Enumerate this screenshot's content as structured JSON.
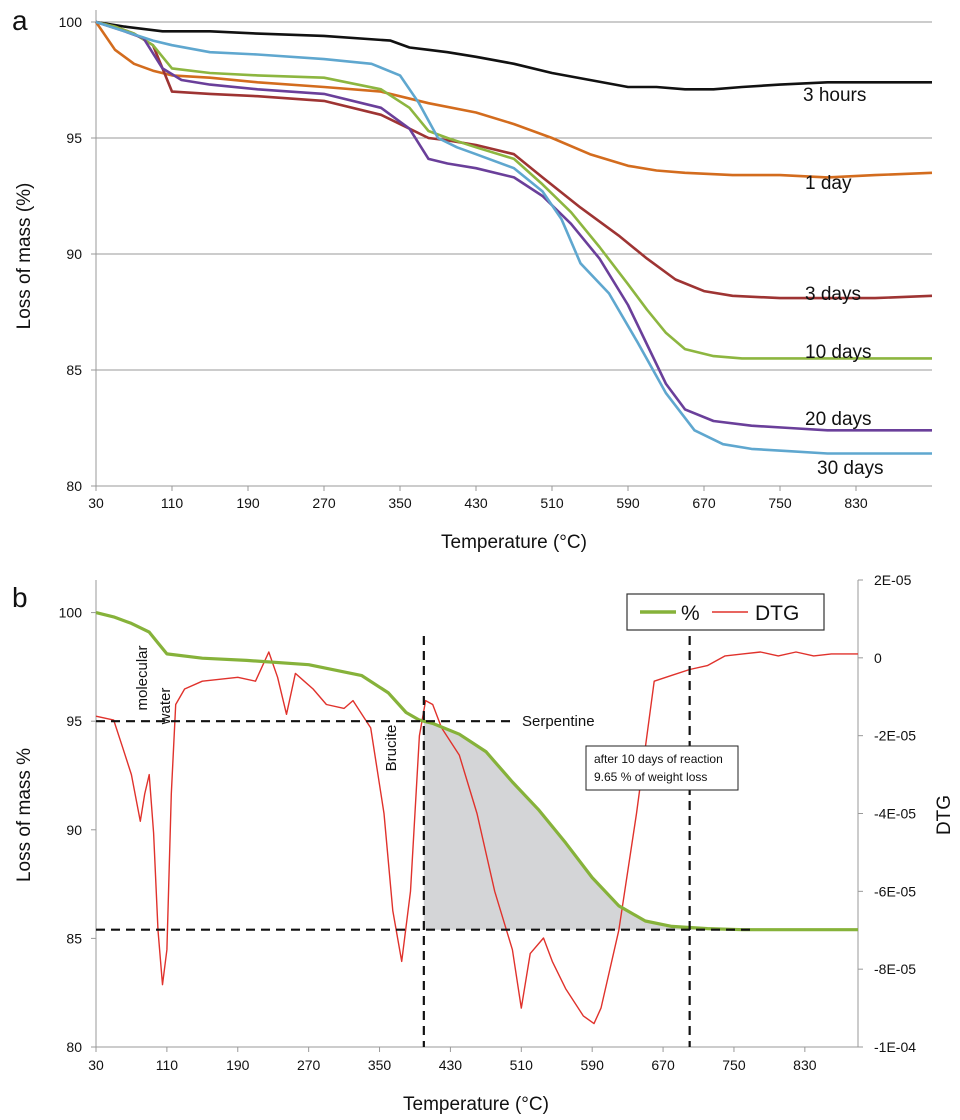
{
  "chart_data": [
    {
      "panel": "a",
      "type": "line",
      "xlabel": "Temperature (°C)",
      "ylabel": "Loss of mass (%)",
      "xlim": [
        30,
        910
      ],
      "ylim": [
        80,
        100
      ],
      "xticks": [
        30,
        110,
        190,
        270,
        350,
        430,
        510,
        590,
        670,
        750,
        830
      ],
      "yticks": [
        80,
        85,
        90,
        95,
        100
      ],
      "grid": "horizontal",
      "series": [
        {
          "name": "3 hours",
          "color": "#111111",
          "x": [
            30,
            60,
            100,
            150,
            200,
            270,
            340,
            360,
            380,
            400,
            430,
            470,
            510,
            550,
            590,
            620,
            650,
            680,
            710,
            750,
            800,
            850,
            910
          ],
          "y": [
            100,
            99.8,
            99.6,
            99.6,
            99.5,
            99.4,
            99.2,
            98.9,
            98.8,
            98.7,
            98.5,
            98.2,
            97.8,
            97.5,
            97.2,
            97.2,
            97.1,
            97.1,
            97.2,
            97.3,
            97.4,
            97.4,
            97.4
          ]
        },
        {
          "name": "1 day",
          "color": "#d36c1e",
          "x": [
            30,
            50,
            70,
            90,
            110,
            150,
            200,
            270,
            330,
            380,
            430,
            470,
            510,
            550,
            590,
            620,
            650,
            700,
            750,
            800,
            850,
            910
          ],
          "y": [
            100,
            98.8,
            98.2,
            97.9,
            97.7,
            97.6,
            97.4,
            97.2,
            97.0,
            96.5,
            96.1,
            95.6,
            95.0,
            94.3,
            93.8,
            93.6,
            93.5,
            93.4,
            93.4,
            93.3,
            93.4,
            93.5
          ]
        },
        {
          "name": "3 days",
          "color": "#9e3433",
          "x": [
            30,
            50,
            70,
            90,
            100,
            110,
            150,
            200,
            270,
            330,
            360,
            380,
            400,
            430,
            470,
            500,
            540,
            580,
            610,
            640,
            670,
            700,
            750,
            800,
            850,
            910
          ],
          "y": [
            100,
            99.8,
            99.5,
            99.0,
            98.0,
            97.0,
            96.9,
            96.8,
            96.6,
            96.0,
            95.4,
            95.0,
            94.9,
            94.7,
            94.3,
            93.3,
            92.0,
            90.8,
            89.8,
            88.9,
            88.4,
            88.2,
            88.1,
            88.1,
            88.1,
            88.2
          ]
        },
        {
          "name": "10 days",
          "color": "#8db640",
          "x": [
            30,
            50,
            70,
            90,
            110,
            150,
            200,
            270,
            330,
            360,
            380,
            400,
            430,
            470,
            500,
            530,
            560,
            590,
            610,
            630,
            650,
            680,
            710,
            750,
            800,
            850,
            910
          ],
          "y": [
            100,
            99.8,
            99.5,
            99.0,
            98.0,
            97.8,
            97.7,
            97.6,
            97.1,
            96.3,
            95.3,
            95.0,
            94.6,
            94.1,
            93.0,
            91.8,
            90.3,
            88.7,
            87.6,
            86.6,
            85.9,
            85.6,
            85.5,
            85.5,
            85.5,
            85.5,
            85.5
          ]
        },
        {
          "name": "20 days",
          "color": "#6a3f9a",
          "x": [
            30,
            60,
            80,
            100,
            120,
            150,
            200,
            270,
            330,
            360,
            380,
            400,
            430,
            470,
            500,
            530,
            560,
            590,
            610,
            630,
            650,
            680,
            720,
            760,
            800,
            850,
            910
          ],
          "y": [
            100,
            99.6,
            99.3,
            98.0,
            97.5,
            97.3,
            97.1,
            96.9,
            96.3,
            95.4,
            94.1,
            93.9,
            93.7,
            93.3,
            92.5,
            91.3,
            89.8,
            87.8,
            86.1,
            84.4,
            83.3,
            82.8,
            82.6,
            82.5,
            82.4,
            82.4,
            82.4
          ]
        },
        {
          "name": "30 days",
          "color": "#5fa7cf",
          "x": [
            30,
            60,
            90,
            110,
            150,
            200,
            270,
            320,
            350,
            370,
            390,
            410,
            430,
            470,
            500,
            520,
            540,
            570,
            600,
            630,
            660,
            690,
            720,
            760,
            800,
            850,
            910
          ],
          "y": [
            100,
            99.6,
            99.2,
            99.0,
            98.7,
            98.6,
            98.4,
            98.2,
            97.7,
            96.5,
            95.0,
            94.6,
            94.3,
            93.7,
            92.7,
            91.5,
            89.6,
            88.3,
            86.2,
            84.0,
            82.4,
            81.8,
            81.6,
            81.5,
            81.4,
            81.4,
            81.4
          ]
        }
      ]
    },
    {
      "panel": "b",
      "type": "line",
      "xlabel": "Temperature (°C)",
      "ylabel": "Loss of mass %",
      "y2label": "DTG",
      "xlim": [
        30,
        890
      ],
      "ylim": [
        80,
        101.5
      ],
      "y2lim": [
        -0.0001,
        2e-05
      ],
      "xticks": [
        30,
        110,
        190,
        270,
        350,
        430,
        510,
        590,
        670,
        750,
        830
      ],
      "yticks": [
        80,
        85,
        90,
        95,
        100
      ],
      "y2ticks": [
        "2E-05",
        "0",
        "-2E-05",
        "-4E-05",
        "-6E-05",
        "-8E-05",
        "-1E-04"
      ],
      "y2tick_values": [
        2e-05,
        0,
        -2e-05,
        -4e-05,
        -6e-05,
        -8e-05,
        -0.0001
      ],
      "grid": "off",
      "legend": {
        "position": "top-right",
        "entries": [
          "%",
          "DTG"
        ]
      },
      "series": [
        {
          "name": "%",
          "axis": "left",
          "color": "#86b23a",
          "x": [
            30,
            50,
            70,
            90,
            100,
            110,
            150,
            200,
            270,
            330,
            360,
            380,
            395,
            410,
            440,
            470,
            500,
            530,
            560,
            590,
            620,
            650,
            680,
            720,
            760,
            800,
            850,
            890
          ],
          "y": [
            100,
            99.8,
            99.5,
            99.1,
            98.6,
            98.1,
            97.9,
            97.8,
            97.6,
            97.1,
            96.3,
            95.4,
            95.05,
            94.9,
            94.4,
            93.6,
            92.2,
            90.9,
            89.4,
            87.8,
            86.5,
            85.8,
            85.55,
            85.45,
            85.4,
            85.4,
            85.4,
            85.4
          ]
        },
        {
          "name": "DTG",
          "axis": "right",
          "color": "#e0322c",
          "x": [
            30,
            50,
            60,
            70,
            80,
            85,
            90,
            95,
            100,
            105,
            110,
            115,
            120,
            130,
            150,
            190,
            210,
            225,
            235,
            245,
            255,
            265,
            275,
            290,
            310,
            320,
            340,
            355,
            365,
            375,
            385,
            395,
            402,
            410,
            420,
            440,
            460,
            480,
            500,
            510,
            520,
            535,
            545,
            560,
            580,
            592,
            600,
            620,
            640,
            660,
            680,
            700,
            720,
            740,
            760,
            780,
            800,
            820,
            840,
            860,
            890
          ],
          "y": [
            -1.5e-05,
            -1.6e-05,
            -2.3e-05,
            -3e-05,
            -4.2e-05,
            -3.5e-05,
            -3e-05,
            -4.5e-05,
            -7e-05,
            -8.4e-05,
            -7.5e-05,
            -3.5e-05,
            -1.2e-05,
            -8e-06,
            -6e-06,
            -5e-06,
            -6e-06,
            1.5e-06,
            -5e-06,
            -1.45e-05,
            -4e-06,
            -6e-06,
            -8e-06,
            -1.2e-05,
            -1.3e-05,
            -1.1e-05,
            -1.8e-05,
            -4e-05,
            -6.5e-05,
            -7.8e-05,
            -6e-05,
            -2e-05,
            -1.1e-05,
            -1.2e-05,
            -1.8e-05,
            -2.5e-05,
            -4e-05,
            -6e-05,
            -7.5e-05,
            -9e-05,
            -7.6e-05,
            -7.2e-05,
            -7.8e-05,
            -8.5e-05,
            -9.2e-05,
            -9.4e-05,
            -9e-05,
            -7e-05,
            -4e-05,
            -6e-06,
            -4.5e-06,
            -3e-06,
            -2e-06,
            5e-07,
            1e-06,
            1.5e-06,
            5e-07,
            1.5e-06,
            5e-07,
            1e-06,
            1e-06
          ]
        }
      ],
      "reference_lines": {
        "horizontal_mass": [
          95,
          85.4
        ],
        "vertical_temp": [
          400,
          700
        ]
      },
      "shaded_region": {
        "x_from": 400,
        "x_to": 720,
        "floor": 85.4
      },
      "annotations": [
        "molecular",
        "water",
        "Brucite",
        "Serpentine"
      ],
      "textbox": [
        "after 10 days of reaction",
        "9.65 % of weight loss"
      ]
    }
  ]
}
